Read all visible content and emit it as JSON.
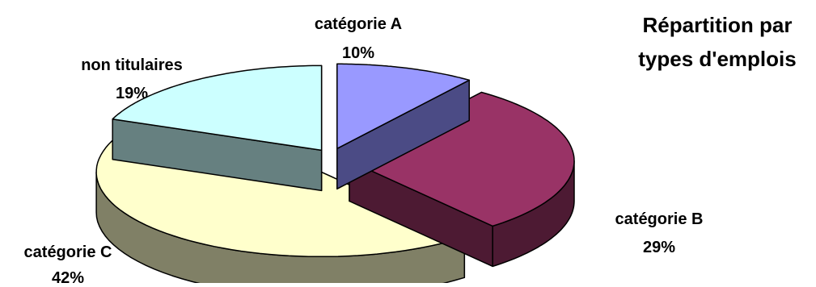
{
  "chart_data": {
    "type": "pie",
    "style": "3d-exploded",
    "title_lines": [
      "Répartition par",
      "types d'emplois"
    ],
    "slices": [
      {
        "name": "catégorie A",
        "value": 10,
        "label": "10%",
        "top_color": "#9999ff",
        "side_color": "#4b4b85"
      },
      {
        "name": "catégorie B",
        "value": 29,
        "label": "29%",
        "top_color": "#993366",
        "side_color": "#4d1a33"
      },
      {
        "name": "catégorie C",
        "value": 42,
        "label": "42%",
        "top_color": "#ffffcc",
        "side_color": "#808066"
      },
      {
        "name": "non titulaires",
        "value": 19,
        "label": "19%",
        "top_color": "#ccffff",
        "side_color": "#668080"
      }
    ],
    "legend": "none"
  }
}
